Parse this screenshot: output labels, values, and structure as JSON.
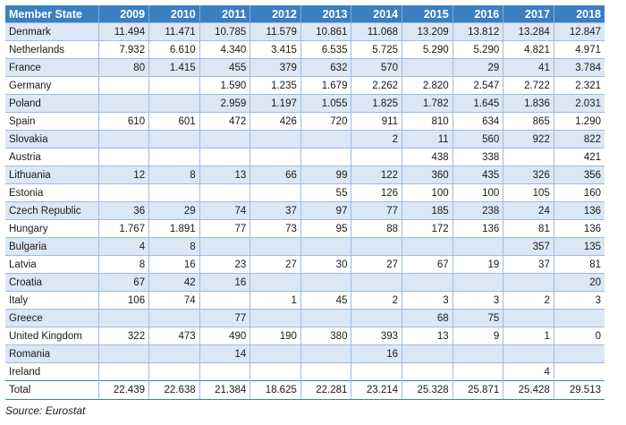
{
  "table": {
    "header": [
      "Member State",
      "2009",
      "2010",
      "2011",
      "2012",
      "2013",
      "2014",
      "2015",
      "2016",
      "2017",
      "2018"
    ],
    "rows": [
      {
        "state": "Denmark",
        "values": [
          "11.494",
          "11.471",
          "10.785",
          "11.579",
          "10.861",
          "11.068",
          "13.209",
          "13.812",
          "13.284",
          "12.847"
        ]
      },
      {
        "state": "Netherlands",
        "values": [
          "7.932",
          "6.610",
          "4.340",
          "3.415",
          "6.535",
          "5.725",
          "5.290",
          "5.290",
          "4.821",
          "4.971"
        ]
      },
      {
        "state": "France",
        "values": [
          "80",
          "1.415",
          "455",
          "379",
          "632",
          "570",
          "",
          "29",
          "41",
          "3.784"
        ]
      },
      {
        "state": "Germany",
        "values": [
          "",
          "",
          "1.590",
          "1.235",
          "1.679",
          "2.262",
          "2.820",
          "2.547",
          "2.722",
          "2.321"
        ]
      },
      {
        "state": "Poland",
        "values": [
          "",
          "",
          "2.959",
          "1.197",
          "1.055",
          "1.825",
          "1.782",
          "1.645",
          "1.836",
          "2.031"
        ]
      },
      {
        "state": "Spain",
        "values": [
          "610",
          "601",
          "472",
          "426",
          "720",
          "911",
          "810",
          "634",
          "865",
          "1.290"
        ]
      },
      {
        "state": "Slovakia",
        "values": [
          "",
          "",
          "",
          "",
          "",
          "2",
          "11",
          "560",
          "922",
          "822"
        ]
      },
      {
        "state": "Austria",
        "values": [
          "",
          "",
          "",
          "",
          "",
          "",
          "438",
          "338",
          "",
          "421"
        ]
      },
      {
        "state": "Lithuania",
        "values": [
          "12",
          "8",
          "13",
          "66",
          "99",
          "122",
          "360",
          "435",
          "326",
          "356"
        ]
      },
      {
        "state": "Estonia",
        "values": [
          "",
          "",
          "",
          "",
          "55",
          "126",
          "100",
          "100",
          "105",
          "160"
        ]
      },
      {
        "state": "Czech Republic",
        "values": [
          "36",
          "29",
          "74",
          "37",
          "97",
          "77",
          "185",
          "238",
          "24",
          "136"
        ]
      },
      {
        "state": "Hungary",
        "values": [
          "1.767",
          "1.891",
          "77",
          "73",
          "95",
          "88",
          "172",
          "136",
          "81",
          "136"
        ]
      },
      {
        "state": "Bulgaria",
        "values": [
          "4",
          "8",
          "",
          "",
          "",
          "",
          "",
          "",
          "357",
          "135"
        ]
      },
      {
        "state": "Latvia",
        "values": [
          "8",
          "16",
          "23",
          "27",
          "30",
          "27",
          "67",
          "19",
          "37",
          "81"
        ]
      },
      {
        "state": "Croatia",
        "values": [
          "67",
          "42",
          "16",
          "",
          "",
          "",
          "",
          "",
          "",
          "20"
        ]
      },
      {
        "state": "Italy",
        "values": [
          "106",
          "74",
          "",
          "1",
          "45",
          "2",
          "3",
          "3",
          "2",
          "3"
        ]
      },
      {
        "state": "Greece",
        "values": [
          "",
          "",
          "77",
          "",
          "",
          "",
          "68",
          "75",
          "",
          ""
        ]
      },
      {
        "state": "United Kingdom",
        "values": [
          "322",
          "473",
          "490",
          "190",
          "380",
          "393",
          "13",
          "9",
          "1",
          "0"
        ]
      },
      {
        "state": "Romania",
        "values": [
          "",
          "",
          "14",
          "",
          "",
          "16",
          "",
          "",
          "",
          ""
        ]
      },
      {
        "state": "Ireland",
        "values": [
          "",
          "",
          "",
          "",
          "",
          "",
          "",
          "",
          "4",
          ""
        ]
      }
    ],
    "total": {
      "state": "Total",
      "values": [
        "22.439",
        "22.638",
        "21.384",
        "18.625",
        "22.281",
        "23.214",
        "25.328",
        "25.871",
        "25.428",
        "29.513"
      ]
    }
  },
  "source": "Source: Eurostat",
  "colors": {
    "header_bg": "#3a7fc1",
    "stripe_bg": "#dbe7f5",
    "border": "#9dbbe0"
  }
}
